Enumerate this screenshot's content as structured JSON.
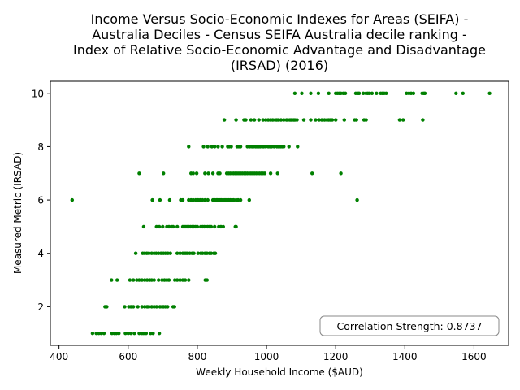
{
  "chart_data": {
    "type": "scatter",
    "title_lines": [
      "Income Versus Socio-Economic Indexes for Areas (SEIFA) -",
      "Australia Deciles - Census SEIFA Australia decile ranking -",
      "Index of Relative Socio-Economic Advantage and Disadvantage",
      "(IRSAD) (2016)"
    ],
    "xlabel": "Weekly Household Income ($AUD)",
    "ylabel": "Measured Metric (IRSAD)",
    "xlim": [
      375,
      1700
    ],
    "ylim": [
      0.55,
      10.45
    ],
    "x_ticks": [
      400,
      600,
      800,
      1000,
      1200,
      1400,
      1600
    ],
    "y_ticks": [
      2,
      4,
      6,
      8,
      10
    ],
    "grid": false,
    "annotation": "Correlation Strength: 0.8737",
    "annotation_position": "bottom-right",
    "point_color": "#008000",
    "points": [
      [
        497,
        1
      ],
      [
        508,
        1
      ],
      [
        515,
        1
      ],
      [
        522,
        1
      ],
      [
        530,
        1
      ],
      [
        553,
        1
      ],
      [
        560,
        1
      ],
      [
        566,
        1
      ],
      [
        573,
        1
      ],
      [
        592,
        1
      ],
      [
        600,
        1
      ],
      [
        608,
        1
      ],
      [
        618,
        1
      ],
      [
        632,
        1
      ],
      [
        640,
        1
      ],
      [
        645,
        1
      ],
      [
        652,
        1
      ],
      [
        665,
        1
      ],
      [
        672,
        1
      ],
      [
        690,
        1
      ],
      [
        533,
        2
      ],
      [
        538,
        2
      ],
      [
        590,
        2
      ],
      [
        602,
        2
      ],
      [
        608,
        2
      ],
      [
        615,
        2
      ],
      [
        628,
        2
      ],
      [
        640,
        2
      ],
      [
        648,
        2
      ],
      [
        655,
        2
      ],
      [
        660,
        2
      ],
      [
        668,
        2
      ],
      [
        675,
        2
      ],
      [
        682,
        2
      ],
      [
        692,
        2
      ],
      [
        698,
        2
      ],
      [
        702,
        2
      ],
      [
        708,
        2
      ],
      [
        714,
        2
      ],
      [
        730,
        2
      ],
      [
        734,
        2
      ],
      [
        552,
        3
      ],
      [
        568,
        3
      ],
      [
        605,
        3
      ],
      [
        615,
        3
      ],
      [
        625,
        3
      ],
      [
        632,
        3
      ],
      [
        640,
        3
      ],
      [
        648,
        3
      ],
      [
        655,
        3
      ],
      [
        662,
        3
      ],
      [
        668,
        3
      ],
      [
        675,
        3
      ],
      [
        688,
        3
      ],
      [
        698,
        3
      ],
      [
        705,
        3
      ],
      [
        712,
        3
      ],
      [
        718,
        3
      ],
      [
        735,
        3
      ],
      [
        742,
        3
      ],
      [
        750,
        3
      ],
      [
        758,
        3
      ],
      [
        765,
        3
      ],
      [
        775,
        3
      ],
      [
        823,
        3
      ],
      [
        828,
        3
      ],
      [
        622,
        4
      ],
      [
        642,
        4
      ],
      [
        648,
        4
      ],
      [
        654,
        4
      ],
      [
        660,
        4
      ],
      [
        668,
        4
      ],
      [
        675,
        4
      ],
      [
        681,
        4
      ],
      [
        688,
        4
      ],
      [
        695,
        4
      ],
      [
        702,
        4
      ],
      [
        708,
        4
      ],
      [
        715,
        4
      ],
      [
        722,
        4
      ],
      [
        742,
        4
      ],
      [
        750,
        4
      ],
      [
        758,
        4
      ],
      [
        765,
        4
      ],
      [
        770,
        4
      ],
      [
        778,
        4
      ],
      [
        785,
        4
      ],
      [
        790,
        4
      ],
      [
        802,
        4
      ],
      [
        810,
        4
      ],
      [
        815,
        4
      ],
      [
        822,
        4
      ],
      [
        828,
        4
      ],
      [
        835,
        4
      ],
      [
        840,
        4
      ],
      [
        848,
        4
      ],
      [
        852,
        4
      ],
      [
        645,
        5
      ],
      [
        682,
        5
      ],
      [
        690,
        5
      ],
      [
        700,
        5
      ],
      [
        712,
        5
      ],
      [
        718,
        5
      ],
      [
        725,
        5
      ],
      [
        730,
        5
      ],
      [
        742,
        5
      ],
      [
        758,
        5
      ],
      [
        765,
        5
      ],
      [
        770,
        5
      ],
      [
        775,
        5
      ],
      [
        780,
        5
      ],
      [
        785,
        5
      ],
      [
        790,
        5
      ],
      [
        795,
        5
      ],
      [
        800,
        5
      ],
      [
        810,
        5
      ],
      [
        815,
        5
      ],
      [
        820,
        5
      ],
      [
        825,
        5
      ],
      [
        830,
        5
      ],
      [
        835,
        5
      ],
      [
        840,
        5
      ],
      [
        850,
        5
      ],
      [
        862,
        5
      ],
      [
        868,
        5
      ],
      [
        875,
        5
      ],
      [
        910,
        5
      ],
      [
        912,
        5
      ],
      [
        438,
        6
      ],
      [
        670,
        6
      ],
      [
        692,
        6
      ],
      [
        720,
        6
      ],
      [
        752,
        6
      ],
      [
        758,
        6
      ],
      [
        775,
        6
      ],
      [
        782,
        6
      ],
      [
        788,
        6
      ],
      [
        795,
        6
      ],
      [
        802,
        6
      ],
      [
        808,
        6
      ],
      [
        815,
        6
      ],
      [
        822,
        6
      ],
      [
        830,
        6
      ],
      [
        845,
        6
      ],
      [
        850,
        6
      ],
      [
        855,
        6
      ],
      [
        858,
        6
      ],
      [
        862,
        6
      ],
      [
        866,
        6
      ],
      [
        870,
        6
      ],
      [
        875,
        6
      ],
      [
        880,
        6
      ],
      [
        885,
        6
      ],
      [
        890,
        6
      ],
      [
        895,
        6
      ],
      [
        900,
        6
      ],
      [
        905,
        6
      ],
      [
        912,
        6
      ],
      [
        918,
        6
      ],
      [
        925,
        6
      ],
      [
        950,
        6
      ],
      [
        1262,
        6
      ],
      [
        632,
        7
      ],
      [
        702,
        7
      ],
      [
        782,
        7
      ],
      [
        788,
        7
      ],
      [
        798,
        7
      ],
      [
        822,
        7
      ],
      [
        832,
        7
      ],
      [
        845,
        7
      ],
      [
        860,
        7
      ],
      [
        865,
        7
      ],
      [
        885,
        7
      ],
      [
        890,
        7
      ],
      [
        895,
        7
      ],
      [
        900,
        7
      ],
      [
        905,
        7
      ],
      [
        910,
        7
      ],
      [
        915,
        7
      ],
      [
        920,
        7
      ],
      [
        925,
        7
      ],
      [
        930,
        7
      ],
      [
        935,
        7
      ],
      [
        940,
        7
      ],
      [
        945,
        7
      ],
      [
        950,
        7
      ],
      [
        955,
        7
      ],
      [
        960,
        7
      ],
      [
        965,
        7
      ],
      [
        970,
        7
      ],
      [
        975,
        7
      ],
      [
        980,
        7
      ],
      [
        985,
        7
      ],
      [
        990,
        7
      ],
      [
        995,
        7
      ],
      [
        1012,
        7
      ],
      [
        1032,
        7
      ],
      [
        1132,
        7
      ],
      [
        1215,
        7
      ],
      [
        775,
        8
      ],
      [
        818,
        8
      ],
      [
        830,
        8
      ],
      [
        842,
        8
      ],
      [
        850,
        8
      ],
      [
        860,
        8
      ],
      [
        872,
        8
      ],
      [
        888,
        8
      ],
      [
        892,
        8
      ],
      [
        898,
        8
      ],
      [
        915,
        8
      ],
      [
        920,
        8
      ],
      [
        925,
        8
      ],
      [
        945,
        8
      ],
      [
        952,
        8
      ],
      [
        958,
        8
      ],
      [
        962,
        8
      ],
      [
        968,
        8
      ],
      [
        972,
        8
      ],
      [
        978,
        8
      ],
      [
        982,
        8
      ],
      [
        988,
        8
      ],
      [
        992,
        8
      ],
      [
        998,
        8
      ],
      [
        1005,
        8
      ],
      [
        1010,
        8
      ],
      [
        1015,
        8
      ],
      [
        1022,
        8
      ],
      [
        1030,
        8
      ],
      [
        1035,
        8
      ],
      [
        1040,
        8
      ],
      [
        1045,
        8
      ],
      [
        1050,
        8
      ],
      [
        1065,
        8
      ],
      [
        1090,
        8
      ],
      [
        878,
        9
      ],
      [
        912,
        9
      ],
      [
        935,
        9
      ],
      [
        940,
        9
      ],
      [
        955,
        9
      ],
      [
        965,
        9
      ],
      [
        978,
        9
      ],
      [
        990,
        9
      ],
      [
        998,
        9
      ],
      [
        1005,
        9
      ],
      [
        1012,
        9
      ],
      [
        1018,
        9
      ],
      [
        1025,
        9
      ],
      [
        1030,
        9
      ],
      [
        1035,
        9
      ],
      [
        1042,
        9
      ],
      [
        1050,
        9
      ],
      [
        1058,
        9
      ],
      [
        1062,
        9
      ],
      [
        1068,
        9
      ],
      [
        1072,
        9
      ],
      [
        1078,
        9
      ],
      [
        1082,
        9
      ],
      [
        1088,
        9
      ],
      [
        1108,
        9
      ],
      [
        1128,
        9
      ],
      [
        1142,
        9
      ],
      [
        1152,
        9
      ],
      [
        1160,
        9
      ],
      [
        1168,
        9
      ],
      [
        1175,
        9
      ],
      [
        1180,
        9
      ],
      [
        1185,
        9
      ],
      [
        1190,
        9
      ],
      [
        1200,
        9
      ],
      [
        1225,
        9
      ],
      [
        1255,
        9
      ],
      [
        1260,
        9
      ],
      [
        1282,
        9
      ],
      [
        1288,
        9
      ],
      [
        1385,
        9
      ],
      [
        1395,
        9
      ],
      [
        1452,
        9
      ],
      [
        1082,
        10
      ],
      [
        1102,
        10
      ],
      [
        1128,
        10
      ],
      [
        1150,
        10
      ],
      [
        1180,
        10
      ],
      [
        1200,
        10
      ],
      [
        1205,
        10
      ],
      [
        1210,
        10
      ],
      [
        1215,
        10
      ],
      [
        1222,
        10
      ],
      [
        1228,
        10
      ],
      [
        1258,
        10
      ],
      [
        1265,
        10
      ],
      [
        1268,
        10
      ],
      [
        1280,
        10
      ],
      [
        1288,
        10
      ],
      [
        1293,
        10
      ],
      [
        1298,
        10
      ],
      [
        1305,
        10
      ],
      [
        1318,
        10
      ],
      [
        1330,
        10
      ],
      [
        1335,
        10
      ],
      [
        1340,
        10
      ],
      [
        1346,
        10
      ],
      [
        1405,
        10
      ],
      [
        1412,
        10
      ],
      [
        1418,
        10
      ],
      [
        1425,
        10
      ],
      [
        1450,
        10
      ],
      [
        1455,
        10
      ],
      [
        1458,
        10
      ],
      [
        1548,
        10
      ],
      [
        1568,
        10
      ],
      [
        1645,
        10
      ]
    ]
  }
}
